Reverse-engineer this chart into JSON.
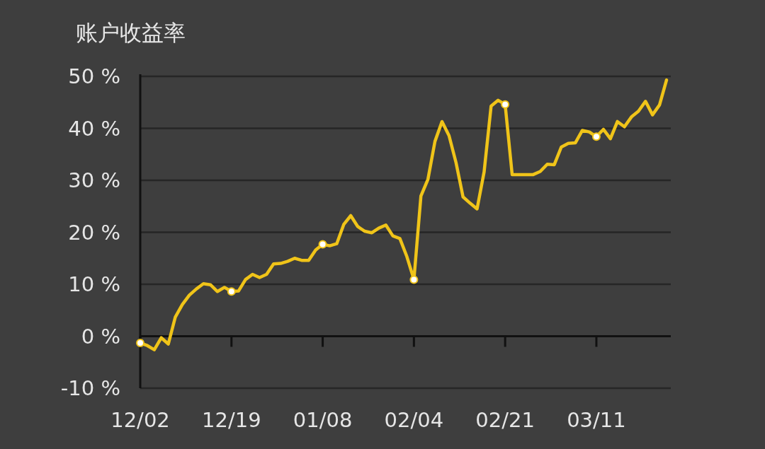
{
  "chart_data": {
    "type": "line",
    "title": "账户收益率",
    "categories": [
      "12/02",
      null,
      null,
      null,
      null,
      null,
      null,
      null,
      null,
      null,
      null,
      null,
      null,
      "12/19",
      null,
      null,
      null,
      null,
      null,
      null,
      null,
      null,
      null,
      null,
      null,
      null,
      "01/08",
      null,
      null,
      null,
      null,
      null,
      null,
      null,
      null,
      null,
      null,
      null,
      null,
      "02/04",
      null,
      null,
      null,
      null,
      null,
      null,
      null,
      null,
      null,
      null,
      null,
      null,
      "02/21",
      null,
      null,
      null,
      null,
      null,
      null,
      null,
      null,
      null,
      null,
      null,
      null,
      "03/11",
      null,
      null,
      null,
      null,
      null,
      null,
      null,
      null,
      null,
      null
    ],
    "series": [
      {
        "color": "#f0c419",
        "values": [
          -1.3,
          -1.8,
          -2.6,
          -0.3,
          -1.5,
          3.7,
          6.1,
          7.9,
          9.1,
          10.1,
          9.9,
          8.6,
          9.4,
          8.6,
          8.7,
          10.9,
          11.9,
          11.3,
          11.9,
          13.9,
          14.0,
          14.4,
          15.0,
          14.6,
          14.6,
          16.6,
          17.7,
          17.4,
          17.8,
          21.5,
          23.2,
          21.1,
          20.2,
          19.9,
          20.8,
          21.4,
          19.3,
          18.8,
          15.3,
          10.9,
          27.0,
          30.2,
          37.5,
          41.3,
          38.6,
          33.4,
          26.8,
          25.6,
          24.5,
          31.6,
          44.3,
          45.4,
          44.6,
          31.1,
          31.1,
          31.1,
          31.1,
          31.7,
          33.1,
          33.0,
          36.4,
          37.1,
          37.2,
          39.6,
          39.3,
          38.4,
          39.8,
          38.0,
          41.3,
          40.3,
          42.2,
          43.3,
          45.2,
          42.6,
          44.5,
          49.3
        ]
      },
      {
        "type": "scatter",
        "color": "#f0c419",
        "x": [
          "12/02",
          "12/19",
          "01/08",
          "02/04",
          "02/21",
          "03/11"
        ],
        "values": [
          -1.3,
          8.6,
          17.7,
          10.9,
          44.6,
          38.4
        ],
        "marker": "circle"
      }
    ],
    "ylim": [
      -10,
      50
    ],
    "yticks": [
      {
        "value": -10,
        "label": "-10 %"
      },
      {
        "value": 0,
        "label": "0 %"
      },
      {
        "value": 10,
        "label": "10 %"
      },
      {
        "value": 20,
        "label": "20 %"
      },
      {
        "value": 30,
        "label": "30 %"
      },
      {
        "value": 40,
        "label": "40 %"
      },
      {
        "value": 50,
        "label": "50 %"
      }
    ],
    "grid": "y",
    "line_style": "solid"
  }
}
